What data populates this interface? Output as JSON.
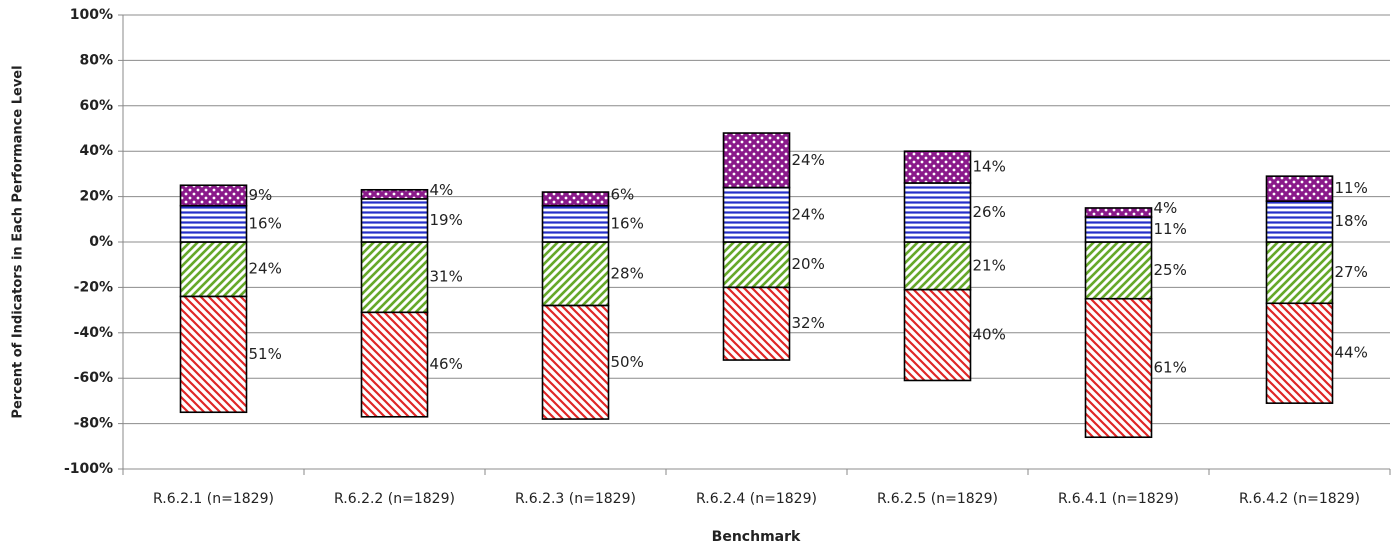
{
  "chart_data": {
    "type": "diverging-stacked-bar",
    "x_label": "Benchmark",
    "y_label": "Percent of Indicators in Each Performance Level",
    "categories": [
      "R.6.2.1 (n=1829)",
      "R.6.2.2 (n=1829)",
      "R.6.2.3 (n=1829)",
      "R.6.2.4 (n=1829)",
      "R.6.2.5 (n=1829)",
      "R.6.4.1 (n=1829)",
      "R.6.4.2 (n=1829)"
    ],
    "series": [
      {
        "color": "#66a82a",
        "pattern": "diagonal-up",
        "side": "negative",
        "values": [
          24,
          31,
          28,
          20,
          21,
          25,
          27
        ],
        "value_labels": [
          "24%",
          "31%",
          "28%",
          "20%",
          "21%",
          "25%",
          "27%"
        ]
      },
      {
        "color": "#e02626",
        "pattern": "diagonal-down",
        "side": "negative",
        "values": [
          51,
          46,
          50,
          32,
          40,
          61,
          44
        ],
        "value_labels": [
          "51%",
          "46%",
          "50%",
          "32%",
          "40%",
          "61%",
          "44%"
        ]
      },
      {
        "color": "#2430c8",
        "pattern": "horizontal",
        "side": "positive",
        "values": [
          16,
          19,
          16,
          24,
          26,
          11,
          18
        ],
        "value_labels": [
          "16%",
          "19%",
          "16%",
          "24%",
          "26%",
          "11%",
          "18%"
        ]
      },
      {
        "color": "#8a1a8a",
        "pattern": "dots",
        "side": "positive",
        "values": [
          9,
          4,
          6,
          24,
          14,
          4,
          11
        ],
        "value_labels": [
          "9%",
          "4%",
          "6%",
          "24%",
          "14%",
          "4%",
          "11%"
        ]
      }
    ],
    "ylim": [
      -100,
      100
    ],
    "yticks": [
      {
        "value": -100,
        "label": "-100%"
      },
      {
        "value": -80,
        "label": "-80%"
      },
      {
        "value": -60,
        "label": "-60%"
      },
      {
        "value": -40,
        "label": "-40%"
      },
      {
        "value": -20,
        "label": "-20%"
      },
      {
        "value": 0,
        "label": "0%"
      },
      {
        "value": 20,
        "label": "20%"
      },
      {
        "value": 40,
        "label": "40%"
      },
      {
        "value": 60,
        "label": "60%"
      },
      {
        "value": 80,
        "label": "80%"
      },
      {
        "value": 100,
        "label": "100%"
      }
    ],
    "grid": true
  }
}
